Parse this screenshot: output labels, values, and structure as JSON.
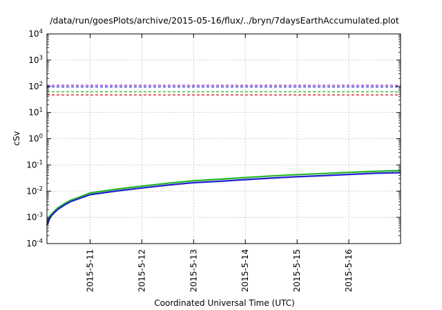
{
  "chart_data": {
    "type": "line",
    "title": "/data/run/goesPlots/archive/2015-05-16/flux/../bryn/7daysEarthAccumulated.plot",
    "xlabel": "Coordinated Universal Time (UTC)",
    "ylabel": "cSv",
    "yscale": "log",
    "ylim": [
      0.0001,
      10000
    ],
    "xlim": [
      "2015-05-10T04:00",
      "2015-05-16T23:59"
    ],
    "grid": true,
    "x_ticks": [
      "2015-05-11",
      "2015-05-12",
      "2015-05-13",
      "2015-05-14",
      "2015-05-15",
      "2015-05-16"
    ],
    "x_tick_labels": [
      "2015-5-11",
      "2015-5-12",
      "2015-5-13",
      "2015-5-14",
      "2015-5-15",
      "2015-5-16"
    ],
    "y_ticks": [
      0.0001,
      0.001,
      0.01,
      0.1,
      1,
      10,
      100,
      1000,
      10000
    ],
    "y_tick_labels": [
      {
        "base": "10",
        "exp": "-4"
      },
      {
        "base": "10",
        "exp": "-3"
      },
      {
        "base": "10",
        "exp": "-2"
      },
      {
        "base": "10",
        "exp": "-1"
      },
      {
        "base": "10",
        "exp": "0"
      },
      {
        "base": "10",
        "exp": "1"
      },
      {
        "base": "10",
        "exp": "2"
      },
      {
        "base": "10",
        "exp": "3"
      },
      {
        "base": "10",
        "exp": "4"
      }
    ],
    "thresholds": [
      {
        "value": 110,
        "color": "#9b30d9"
      },
      {
        "value": 95,
        "color": "#1f1fd0"
      },
      {
        "value": 62,
        "color": "#22b522"
      },
      {
        "value": 47,
        "color": "#e01b1b"
      }
    ],
    "series": [
      {
        "color": "#22b522",
        "x": [
          "2015-05-10T04:00",
          "2015-05-10T05:30",
          "2015-05-10T07:00",
          "2015-05-10T09:00",
          "2015-05-10T12:00",
          "2015-05-10T15:00",
          "2015-05-10T18:00",
          "2015-05-11T00:00",
          "2015-05-11T12:00",
          "2015-05-12T00:00",
          "2015-05-12T12:00",
          "2015-05-13T00:00",
          "2015-05-13T12:00",
          "2015-05-14T00:00",
          "2015-05-14T12:00",
          "2015-05-15T00:00",
          "2015-05-15T12:00",
          "2015-05-16T00:00",
          "2015-05-16T12:00",
          "2015-05-16T23:59"
        ],
        "y": [
          0.0007,
          0.0012,
          0.0016,
          0.0023,
          0.0033,
          0.0045,
          0.0055,
          0.0085,
          0.0118,
          0.0155,
          0.02,
          0.025,
          0.0285,
          0.033,
          0.038,
          0.043,
          0.047,
          0.052,
          0.057,
          0.061
        ]
      },
      {
        "color": "#1f1fd0",
        "x": [
          "2015-05-10T04:00",
          "2015-05-10T05:30",
          "2015-05-10T07:00",
          "2015-05-10T09:00",
          "2015-05-10T12:00",
          "2015-05-10T15:00",
          "2015-05-10T18:00",
          "2015-05-11T00:00",
          "2015-05-11T12:00",
          "2015-05-12T00:00",
          "2015-05-12T12:00",
          "2015-05-13T00:00",
          "2015-05-13T12:00",
          "2015-05-14T00:00",
          "2015-05-14T12:00",
          "2015-05-15T00:00",
          "2015-05-15T12:00",
          "2015-05-16T00:00",
          "2015-05-16T12:00",
          "2015-05-16T23:59"
        ],
        "y": [
          0.0005,
          0.001,
          0.0014,
          0.002,
          0.0029,
          0.004,
          0.0049,
          0.0073,
          0.0101,
          0.0132,
          0.017,
          0.021,
          0.0238,
          0.0275,
          0.0315,
          0.0355,
          0.039,
          0.0435,
          0.048,
          0.051
        ]
      }
    ]
  }
}
